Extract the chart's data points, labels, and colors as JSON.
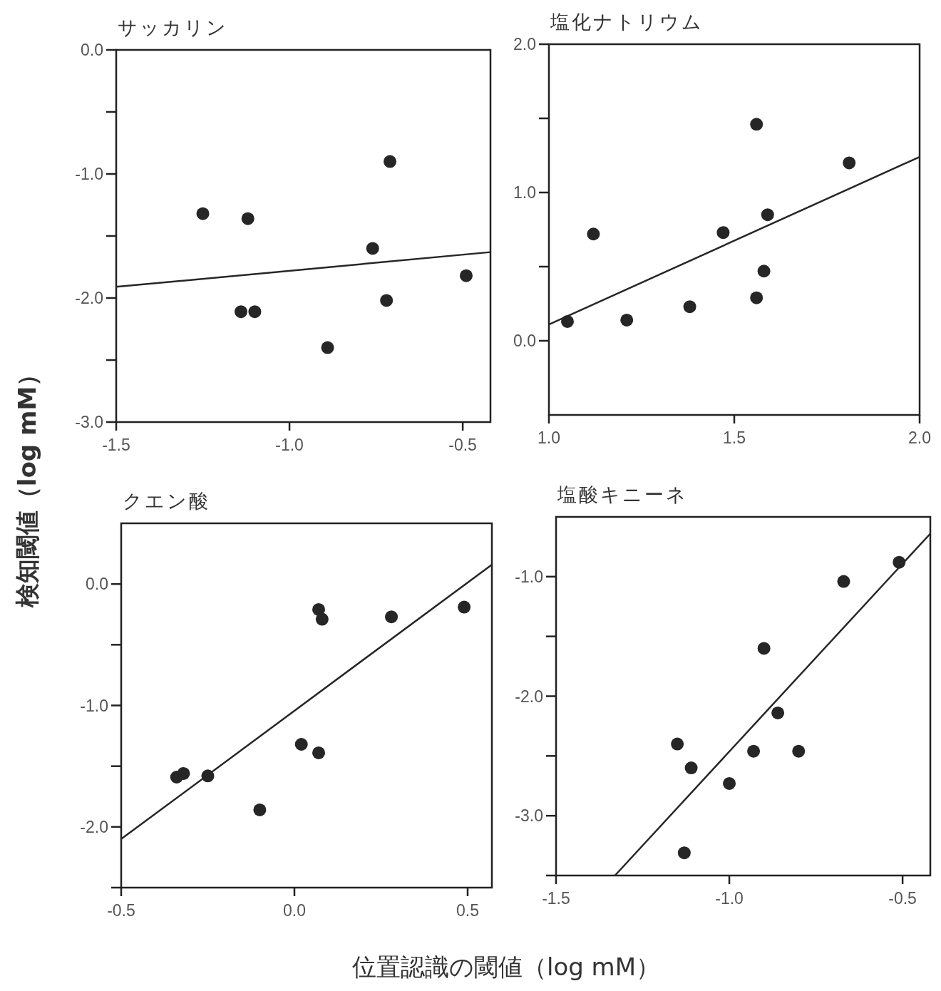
{
  "chart_data": [
    {
      "type": "scatter",
      "title": "サッカリン",
      "ylabel": "検知閾値（log mM）",
      "xlim": [
        -1.5,
        -0.42
      ],
      "ylim": [
        -3,
        0
      ],
      "xticks": [
        {
          "value": -1.5,
          "label": "-1.5"
        },
        {
          "value": -1,
          "label": "-1.0"
        },
        {
          "value": -0.5,
          "label": "-0.5"
        }
      ],
      "yticks": [
        {
          "value": 0,
          "label": "0.0"
        },
        {
          "value": -0.5,
          "label": null
        },
        {
          "value": -1,
          "label": "-1.0"
        },
        {
          "value": -1.5,
          "label": null
        },
        {
          "value": -2,
          "label": "-2.0"
        },
        {
          "value": -2.5,
          "label": null
        },
        {
          "value": -3,
          "label": "-3.0"
        }
      ],
      "grid": false,
      "series": [
        {
          "marker": "circle",
          "color": "#262626",
          "x": [
            -1.25,
            -1.12,
            -0.71,
            -0.76,
            -0.49,
            -0.72,
            -1.14,
            -1.1,
            -0.89
          ],
          "values": [
            -1.32,
            -1.36,
            -0.9,
            -1.6,
            -1.82,
            -2.02,
            -2.11,
            -2.11,
            -2.4
          ]
        },
        {
          "type": "line",
          "color": "#262626",
          "line_style": "solid",
          "x": [
            -1.5,
            -0.42
          ],
          "values": [
            -1.91,
            -1.63
          ]
        }
      ]
    },
    {
      "type": "scatter",
      "title": "塩化ナトリウム",
      "xlim": [
        1,
        2
      ],
      "ylim": [
        -0.5,
        2
      ],
      "xticks": [
        {
          "value": 1,
          "label": "1.0"
        },
        {
          "value": 1.5,
          "label": "1.5"
        },
        {
          "value": 2,
          "label": "2.0"
        }
      ],
      "yticks": [
        {
          "value": 2,
          "label": "2.0"
        },
        {
          "value": 1.5,
          "label": null
        },
        {
          "value": 1,
          "label": "1.0"
        },
        {
          "value": 0.5,
          "label": null
        },
        {
          "value": 0,
          "label": "0.0"
        }
      ],
      "grid": false,
      "series": [
        {
          "marker": "circle",
          "color": "#262626",
          "x": [
            1.05,
            1.12,
            1.21,
            1.38,
            1.47,
            1.56,
            1.56,
            1.58,
            1.59,
            1.81
          ],
          "values": [
            0.13,
            0.72,
            0.14,
            0.23,
            0.73,
            1.46,
            0.29,
            0.47,
            0.85,
            1.2
          ]
        },
        {
          "type": "line",
          "color": "#262626",
          "line_style": "solid",
          "x": [
            1,
            2
          ],
          "values": [
            0.11,
            1.24
          ]
        }
      ]
    },
    {
      "type": "scatter",
      "title": "クエン酸",
      "xlabel": "位置認識の閾値（log mM）",
      "xlim": [
        -0.5,
        0.57
      ],
      "ylim": [
        -2.5,
        0.5
      ],
      "xticks": [
        {
          "value": -0.5,
          "label": "-0.5"
        },
        {
          "value": 0,
          "label": "0.0"
        },
        {
          "value": 0.5,
          "label": "0.5"
        }
      ],
      "yticks": [
        {
          "value": 0,
          "label": "0.0"
        },
        {
          "value": -0.5,
          "label": null
        },
        {
          "value": -1,
          "label": "-1.0"
        },
        {
          "value": -1.5,
          "label": null
        },
        {
          "value": -2,
          "label": "-2.0"
        },
        {
          "value": -2.5,
          "label": null
        }
      ],
      "grid": false,
      "series": [
        {
          "marker": "circle",
          "color": "#262626",
          "x": [
            -0.34,
            -0.32,
            -0.25,
            -0.1,
            0.02,
            0.07,
            0.07,
            0.08,
            0.28,
            0.49
          ],
          "values": [
            -1.59,
            -1.56,
            -1.58,
            -1.86,
            -1.32,
            -1.39,
            -0.21,
            -0.29,
            -0.27,
            -0.19
          ]
        },
        {
          "type": "line",
          "color": "#262626",
          "line_style": "solid",
          "x": [
            -0.5,
            0.57
          ],
          "values": [
            -2.1,
            0.16
          ]
        }
      ]
    },
    {
      "type": "scatter",
      "title": "塩酸キニーネ",
      "xlim": [
        -1.5,
        -0.42
      ],
      "ylim": [
        -3.5,
        -0.5
      ],
      "xticks": [
        {
          "value": -1.5,
          "label": "-1.5"
        },
        {
          "value": -1,
          "label": "-1.0"
        },
        {
          "value": -0.5,
          "label": "-0.5"
        }
      ],
      "yticks": [
        {
          "value": -1,
          "label": "-1.0"
        },
        {
          "value": -1.5,
          "label": null
        },
        {
          "value": -2,
          "label": "-2.0"
        },
        {
          "value": -2.5,
          "label": null
        },
        {
          "value": -3,
          "label": "-3.0"
        },
        {
          "value": -3.5,
          "label": null
        }
      ],
      "grid": false,
      "series": [
        {
          "marker": "circle",
          "color": "#262626",
          "x": [
            -1.15,
            -1.11,
            -1,
            -0.9,
            -0.93,
            -0.86,
            -0.8,
            -0.67,
            -0.51,
            -1.13
          ],
          "values": [
            -2.4,
            -2.6,
            -2.73,
            -1.6,
            -2.46,
            -2.14,
            -2.46,
            -1.04,
            -0.88,
            -3.31
          ]
        },
        {
          "type": "line",
          "color": "#262626",
          "line_style": "solid",
          "x": [
            -1.33,
            -0.42
          ],
          "values": [
            -3.5,
            -0.64
          ]
        }
      ]
    }
  ]
}
